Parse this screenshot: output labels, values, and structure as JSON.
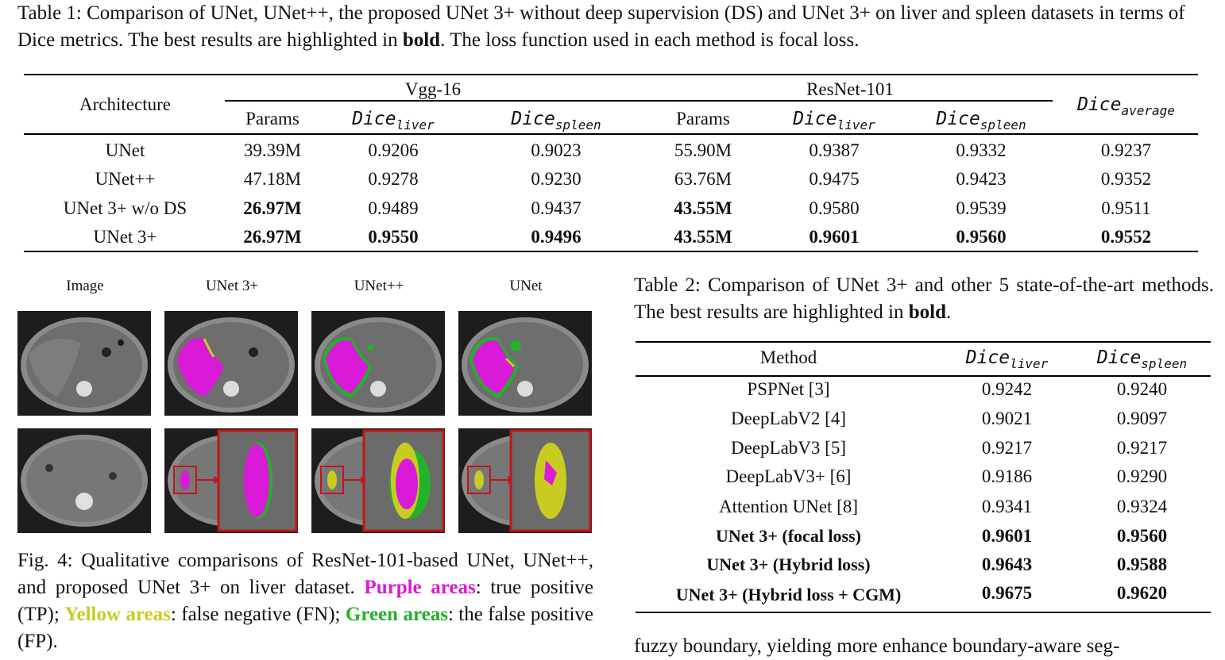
{
  "table1": {
    "caption_part1": "Table 1: Comparison of UNet, UNet++, the proposed UNet 3+ without deep supervision (DS) and UNet 3+ on liver and spleen datasets in terms of Dice metrics. The best results are highlighted in ",
    "caption_bold": "bold",
    "caption_part2": ". The loss function used in each method is focal loss.",
    "col_architecture": "Architecture",
    "group_vgg": "Vgg-16",
    "group_resnet": "ResNet-101",
    "col_params": "Params",
    "dice": "Dice",
    "sub_liver": "liver",
    "sub_spleen": "spleen",
    "sub_average": "average",
    "rows": [
      {
        "arch": "UNet",
        "vp": "39.39M",
        "vl": "0.9206",
        "vs": "0.9023",
        "rp": "55.90M",
        "rl": "0.9387",
        "rs": "0.9332",
        "avg": "0.9237"
      },
      {
        "arch": "UNet++",
        "vp": "47.18M",
        "vl": "0.9278",
        "vs": "0.9230",
        "rp": "63.76M",
        "rl": "0.9475",
        "rs": "0.9423",
        "avg": "0.9352"
      },
      {
        "arch": "UNet 3+ w/o DS",
        "vp": "26.97M",
        "vl": "0.9489",
        "vs": "0.9437",
        "rp": "43.55M",
        "rl": "0.9580",
        "rs": "0.9539",
        "avg": "0.9511"
      },
      {
        "arch": "UNet 3+",
        "vp": "26.97M",
        "vl": "0.9550",
        "vs": "0.9496",
        "rp": "43.55M",
        "rl": "0.9601",
        "rs": "0.9560",
        "avg": "0.9552"
      }
    ]
  },
  "figure4": {
    "col_labels": [
      "Image",
      "UNet 3+",
      "UNet++",
      "UNet"
    ],
    "caption_part1": "Fig. 4: Qualitative comparisons of ResNet-101-based UNet, UNet++, and proposed UNet 3+ on liver dataset. ",
    "purple_label": "Purple areas",
    "caption_part2": ": true positive (TP); ",
    "yellow_label": "Yellow areas",
    "caption_part3": ": false negative (FN); ",
    "green_label": "Green areas",
    "caption_part4": ": the false positive (FP).",
    "colors": {
      "purple": "#d91ad6",
      "yellow": "#c8cc22",
      "green": "#23b22a",
      "box": "#c0161b"
    }
  },
  "table2": {
    "caption_part1": "Table 2: Comparison of UNet 3+ and other 5 state-of-the-art methods. The best results are highlighted in ",
    "caption_bold": "bold",
    "caption_part2": ".",
    "col_method": "Method",
    "dice": "Dice",
    "sub_liver": "liver",
    "sub_spleen": "spleen",
    "rows": [
      {
        "method": "PSPNet [3]",
        "liver": "0.9242",
        "spleen": "0.9240"
      },
      {
        "method": "DeepLabV2 [4]",
        "liver": "0.9021",
        "spleen": "0.9097"
      },
      {
        "method": "DeepLabV3 [5]",
        "liver": "0.9217",
        "spleen": "0.9217"
      },
      {
        "method": "DeepLabV3+ [6]",
        "liver": "0.9186",
        "spleen": "0.9290"
      },
      {
        "method": "Attention UNet [8]",
        "liver": "0.9341",
        "spleen": "0.9324"
      },
      {
        "method": "UNet 3+ (focal loss)",
        "liver": "0.9601",
        "spleen": "0.9560"
      },
      {
        "method": "UNet 3+ (Hybrid loss)",
        "liver": "0.9643",
        "spleen": "0.9588"
      },
      {
        "method": "UNet 3+ (Hybrid loss + CGM)",
        "liver": "0.9675",
        "spleen": "0.9620"
      }
    ]
  },
  "body_text": "fuzzy boundary, yielding more enhance boundary-aware seg-"
}
